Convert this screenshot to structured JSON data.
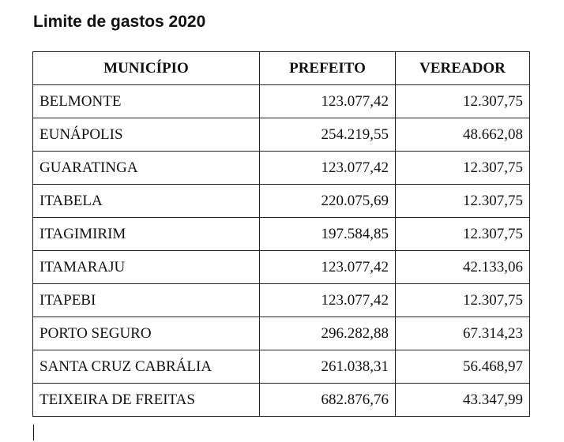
{
  "document": {
    "title": "Limite de gastos 2020"
  },
  "table": {
    "headers": [
      "MUNICÍPIO",
      "PREFEITO",
      "VEREADOR"
    ],
    "rows": [
      [
        "BELMONTE",
        "123.077,42",
        "12.307,75"
      ],
      [
        "EUNÁPOLIS",
        "254.219,55",
        "48.662,08"
      ],
      [
        "GUARATINGA",
        "123.077,42",
        "12.307,75"
      ],
      [
        "ITABELA",
        "220.075,69",
        "12.307,75"
      ],
      [
        "ITAGIMIRIM",
        "197.584,85",
        "12.307,75"
      ],
      [
        "ITAMARAJU",
        "123.077,42",
        "42.133,06"
      ],
      [
        "ITAPEBI",
        "123.077,42",
        "12.307,75"
      ],
      [
        "PORTO SEGURO",
        "296.282,88",
        "67.314,23"
      ],
      [
        "SANTA CRUZ CABRÁLIA",
        "261.038,31",
        "56.468,97"
      ],
      [
        "TEIXEIRA DE FREITAS",
        "682.876,76",
        "43.347,99"
      ]
    ]
  }
}
